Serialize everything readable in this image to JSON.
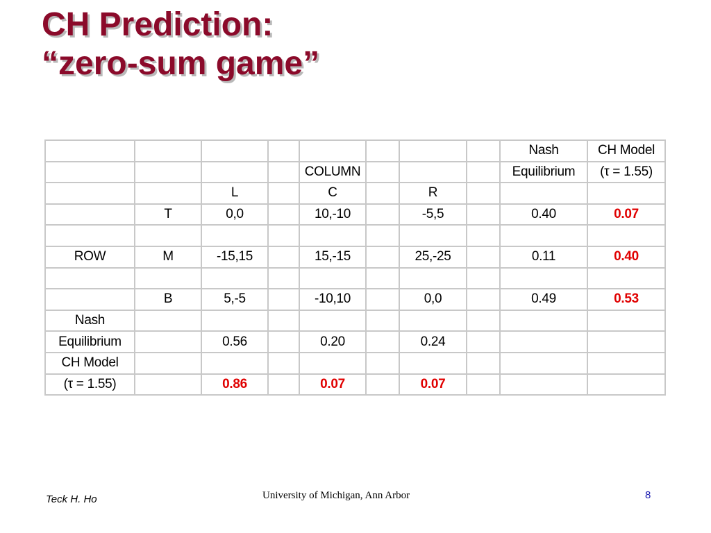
{
  "title": {
    "line1": "CH Prediction:",
    "line2": "“zero-sum game”"
  },
  "table": {
    "rows": [
      [
        "",
        "",
        "",
        "",
        "",
        "",
        "",
        "",
        "Nash",
        "CH Model"
      ],
      [
        "",
        "",
        "",
        "",
        "COLUMN",
        "",
        "",
        "",
        "Equilibrium",
        "(τ  = 1.55)"
      ],
      [
        "",
        "",
        "L",
        "",
        "C",
        "",
        "R",
        "",
        "",
        ""
      ],
      [
        "",
        "T",
        "0,0",
        "",
        "10,-10",
        "",
        "-5,5",
        "",
        "0.40",
        "0.07"
      ],
      [
        "",
        "",
        "",
        "",
        "",
        "",
        "",
        "",
        "",
        ""
      ],
      [
        "ROW",
        "M",
        "-15,15",
        "",
        "15,-15",
        "",
        "25,-25",
        "",
        "0.11",
        "0.40"
      ],
      [
        "",
        "",
        "",
        "",
        "",
        "",
        "",
        "",
        "",
        ""
      ],
      [
        "",
        "B",
        "5,-5",
        "",
        "-10,10",
        "",
        "0,0",
        "",
        "0.49",
        "0.53"
      ],
      [
        "Nash",
        "",
        "",
        "",
        "",
        "",
        "",
        "",
        "",
        ""
      ],
      [
        "Equilibrium",
        "",
        "0.56",
        "",
        "0.20",
        "",
        "0.24",
        "",
        "",
        ""
      ],
      [
        "CH Model",
        "",
        "",
        "",
        "",
        "",
        "",
        "",
        "",
        ""
      ],
      [
        "(τ  = 1.55)",
        "",
        "0.86",
        "",
        "0.07",
        "",
        "0.07",
        "",
        "",
        ""
      ]
    ],
    "highlight_color": "#e00000"
  },
  "footer": {
    "author": "Teck H. Ho",
    "institution": "University of Michigan, Ann Arbor",
    "page_number": "8"
  }
}
